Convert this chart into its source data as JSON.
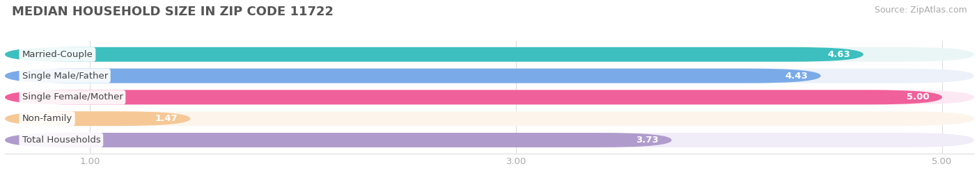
{
  "title": "MEDIAN HOUSEHOLD SIZE IN ZIP CODE 11722",
  "source": "Source: ZipAtlas.com",
  "categories": [
    "Married-Couple",
    "Single Male/Father",
    "Single Female/Mother",
    "Non-family",
    "Total Households"
  ],
  "values": [
    4.63,
    4.43,
    5.0,
    1.47,
    3.73
  ],
  "bar_colors": [
    "#3dbfbf",
    "#7aaae8",
    "#f0609a",
    "#f5c896",
    "#b09ccc"
  ],
  "bar_bg_colors": [
    "#eaf6f6",
    "#edf1f9",
    "#fce8f2",
    "#fdf5ec",
    "#f0ecf8"
  ],
  "label_text_colors": [
    "#3dbfbf",
    "#7aaae8",
    "#f0609a",
    "#d4956a",
    "#9b80c0"
  ],
  "xlim_data": [
    0.0,
    5.0
  ],
  "x_axis_start": 0.7,
  "xticks": [
    1.0,
    3.0,
    5.0
  ],
  "xtick_labels": [
    "1.00",
    "3.00",
    "5.00"
  ],
  "label_fontsize": 9.5,
  "value_fontsize": 9.5,
  "title_fontsize": 13,
  "source_fontsize": 9,
  "bg_color": "#ffffff",
  "grid_color": "#dddddd",
  "title_color": "#555555"
}
